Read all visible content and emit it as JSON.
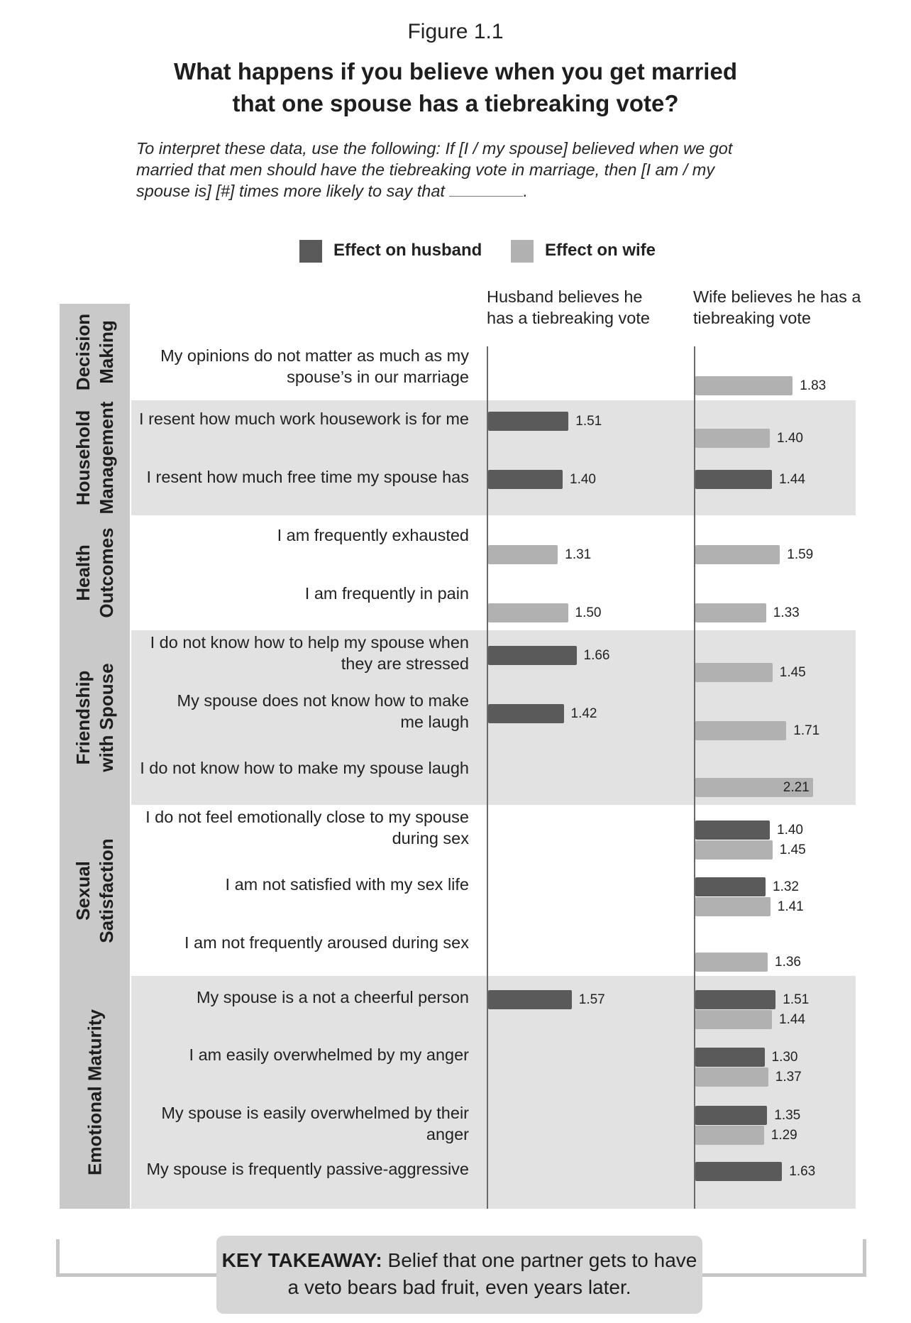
{
  "figure_label": "Figure 1.1",
  "title_line1": "What happens if you believe when you get married",
  "title_line2": "that one spouse has a tiebreaking vote?",
  "note_before_blank": "To interpret these data, use the following: If [I / my spouse] believed when we got married that men should have the tiebreaking vote in marriage, then [I am / my spouse is] [#] times more likely to say that",
  "note_after_blank": ".",
  "colors": {
    "husband": "#5a5a5a",
    "wife": "#b1b1b1",
    "band_dark": "#e2e2e2",
    "category_fill": "#c9c9c9"
  },
  "legend": {
    "husband": "Effect on husband",
    "wife": "Effect on wife"
  },
  "columns": {
    "left": "Husband believes he has a tiebreaking vote",
    "right": "Wife believes he has a tiebreaking vote"
  },
  "takeaway": {
    "label": "KEY TAKEAWAY:",
    "text": "Belief that one partner gets to have a veto bears bad fruit, even years later."
  },
  "chart_data": {
    "type": "bar",
    "orientation": "horizontal",
    "panels": [
      "Husband believes he has a tiebreaking vote",
      "Wife believes he has a tiebreaking vote"
    ],
    "series_names": [
      "Effect on husband",
      "Effect on wife"
    ],
    "groups": [
      {
        "category": "Decision Making",
        "category_lines": [
          "Decision",
          "Making"
        ],
        "shaded": false,
        "rows": [
          {
            "label": "My opinions do not matter as much as my spouse’s in our marriage",
            "label_lines": [
              "My opinions do not matter as much as my",
              "spouse’s in our marriage"
            ],
            "left": [],
            "right": [
              {
                "series": "wife",
                "value": 1.83
              }
            ]
          }
        ]
      },
      {
        "category": "Household Management",
        "category_lines": [
          "Household",
          "Management"
        ],
        "shaded": true,
        "rows": [
          {
            "label": "I resent how much work housework is for me",
            "label_lines": [
              "I resent how much work housework is for me"
            ],
            "left": [
              {
                "series": "husband",
                "value": 1.51
              }
            ],
            "right": [
              {
                "series": "wife",
                "value": 1.4
              }
            ]
          },
          {
            "label": "I resent how much free time my spouse has",
            "label_lines": [
              "I resent how much free time my spouse has"
            ],
            "left": [
              {
                "series": "husband",
                "value": 1.4
              }
            ],
            "right": [
              {
                "series": "husband",
                "value": 1.44
              }
            ]
          }
        ]
      },
      {
        "category": "Health Outcomes",
        "category_lines": [
          "Health",
          "Outcomes"
        ],
        "shaded": false,
        "rows": [
          {
            "label": "I am frequently exhausted",
            "label_lines": [
              "I am frequently exhausted"
            ],
            "left": [
              {
                "series": "wife",
                "value": 1.31
              }
            ],
            "right": [
              {
                "series": "wife",
                "value": 1.59
              }
            ]
          },
          {
            "label": "I am frequently in pain",
            "label_lines": [
              "I am frequently in pain"
            ],
            "left": [
              {
                "series": "wife",
                "value": 1.5
              }
            ],
            "right": [
              {
                "series": "wife",
                "value": 1.33
              }
            ]
          }
        ]
      },
      {
        "category": "Friendship with Spouse",
        "category_lines": [
          "Friendship",
          "with Spouse"
        ],
        "shaded": true,
        "rows": [
          {
            "label": "I do not know how to help my spouse when they are stressed",
            "label_lines": [
              "I do not know how to help my spouse when",
              "they are stressed"
            ],
            "left": [
              {
                "series": "husband",
                "value": 1.66
              }
            ],
            "right": [
              {
                "series": "wife",
                "value": 1.45
              }
            ]
          },
          {
            "label": "My spouse does not know how to make me laugh",
            "label_lines": [
              "My spouse does not know how to make",
              "me laugh"
            ],
            "left": [
              {
                "series": "husband",
                "value": 1.42
              }
            ],
            "right": [
              {
                "series": "wife",
                "value": 1.71
              }
            ]
          },
          {
            "label": "I do not know how to make my spouse laugh",
            "label_lines": [
              "I do not know how to make my spouse laugh"
            ],
            "left": [],
            "right": [
              {
                "series": "wife",
                "value": 2.21
              }
            ]
          }
        ]
      },
      {
        "category": "Sexual Satisfaction",
        "category_lines": [
          "Sexual",
          "Satisfaction"
        ],
        "shaded": false,
        "rows": [
          {
            "label": "I do not feel emotionally close to my spouse during sex",
            "label_lines": [
              "I do not feel emotionally close to my spouse",
              "during sex"
            ],
            "left": [],
            "right": [
              {
                "series": "husband",
                "value": 1.4
              },
              {
                "series": "wife",
                "value": 1.45
              }
            ]
          },
          {
            "label": "I am not satisfied with my sex life",
            "label_lines": [
              "I am not satisfied with my sex life"
            ],
            "left": [],
            "right": [
              {
                "series": "husband",
                "value": 1.32
              },
              {
                "series": "wife",
                "value": 1.41
              }
            ]
          },
          {
            "label": "I am not frequently aroused during sex",
            "label_lines": [
              "I am not frequently aroused during sex"
            ],
            "left": [],
            "right": [
              {
                "series": "wife",
                "value": 1.36
              }
            ]
          }
        ]
      },
      {
        "category": "Emotional Maturity",
        "category_lines": [
          "Emotional Maturity"
        ],
        "shaded": true,
        "rows": [
          {
            "label": "My spouse is a not a cheerful person",
            "label_lines": [
              "My spouse is a not a cheerful person"
            ],
            "left": [
              {
                "series": "husband",
                "value": 1.57
              }
            ],
            "right": [
              {
                "series": "husband",
                "value": 1.51
              },
              {
                "series": "wife",
                "value": 1.44
              }
            ]
          },
          {
            "label": "I am easily overwhelmed by my anger",
            "label_lines": [
              "I am easily overwhelmed by my anger"
            ],
            "left": [],
            "right": [
              {
                "series": "husband",
                "value": 1.3
              },
              {
                "series": "wife",
                "value": 1.37
              }
            ]
          },
          {
            "label": "My spouse is easily overwhelmed by their anger",
            "label_lines": [
              "My spouse is easily overwhelmed by their anger"
            ],
            "left": [],
            "right": [
              {
                "series": "husband",
                "value": 1.35
              },
              {
                "series": "wife",
                "value": 1.29
              }
            ]
          },
          {
            "label": "My spouse is frequently passive-aggressive",
            "label_lines": [
              "My spouse is frequently passive-aggressive"
            ],
            "left": [],
            "right": [
              {
                "series": "husband",
                "value": 1.63
              }
            ]
          }
        ]
      }
    ]
  }
}
